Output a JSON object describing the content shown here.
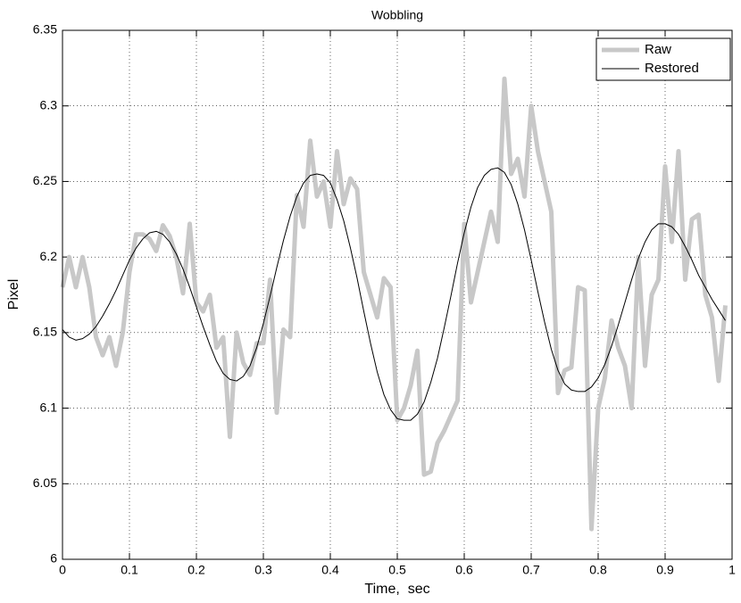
{
  "chart_data": {
    "type": "line",
    "title": "Wobbling",
    "x_label": "Time,  sec",
    "y_label": "Pixel",
    "x": [
      0,
      0.01,
      0.02,
      0.03,
      0.04,
      0.05,
      0.06,
      0.07,
      0.08,
      0.09,
      0.1,
      0.11,
      0.12,
      0.13,
      0.14,
      0.15,
      0.16,
      0.17,
      0.18,
      0.19,
      0.2,
      0.21,
      0.22,
      0.23,
      0.24,
      0.25,
      0.26,
      0.27,
      0.28,
      0.29,
      0.3,
      0.31,
      0.32,
      0.33,
      0.34,
      0.35,
      0.36,
      0.37,
      0.38,
      0.39,
      0.4,
      0.41,
      0.42,
      0.43,
      0.44,
      0.45,
      0.46,
      0.47,
      0.48,
      0.49,
      0.5,
      0.51,
      0.52,
      0.53,
      0.54,
      0.55,
      0.56,
      0.57,
      0.58,
      0.59,
      0.6,
      0.61,
      0.62,
      0.63,
      0.64,
      0.65,
      0.66,
      0.67,
      0.68,
      0.69,
      0.7,
      0.71,
      0.72,
      0.73,
      0.74,
      0.75,
      0.76,
      0.77,
      0.78,
      0.79,
      0.8,
      0.81,
      0.82,
      0.83,
      0.84,
      0.85,
      0.86,
      0.87,
      0.88,
      0.89,
      0.9,
      0.91,
      0.92,
      0.93,
      0.94,
      0.95,
      0.96,
      0.97,
      0.98,
      0.99
    ],
    "series": [
      {
        "name": "Raw",
        "color": "#c8c8c8",
        "width": 5,
        "values": [
          6.18,
          6.2,
          6.18,
          6.2,
          6.18,
          6.147,
          6.135,
          6.147,
          6.128,
          6.15,
          6.19,
          6.215,
          6.215,
          6.212,
          6.204,
          6.221,
          6.214,
          6.2,
          6.176,
          6.222,
          6.17,
          6.164,
          6.175,
          6.14,
          6.147,
          6.081,
          6.15,
          6.13,
          6.122,
          6.143,
          6.143,
          6.185,
          6.097,
          6.152,
          6.147,
          6.241,
          6.22,
          6.277,
          6.24,
          6.25,
          6.22,
          6.27,
          6.235,
          6.252,
          6.245,
          6.19,
          6.175,
          6.16,
          6.186,
          6.18,
          6.092,
          6.1,
          6.115,
          6.138,
          6.056,
          6.058,
          6.077,
          6.085,
          6.095,
          6.105,
          6.222,
          6.17,
          6.19,
          6.21,
          6.23,
          6.21,
          6.318,
          6.255,
          6.265,
          6.24,
          6.3,
          6.27,
          6.25,
          6.23,
          6.11,
          6.125,
          6.127,
          6.18,
          6.178,
          6.02,
          6.1,
          6.12,
          6.158,
          6.14,
          6.128,
          6.1,
          6.2,
          6.128,
          6.175,
          6.185,
          6.26,
          6.21,
          6.27,
          6.185,
          6.225,
          6.228,
          6.175,
          6.16,
          6.118,
          6.168
        ]
      },
      {
        "name": "Restored",
        "color": "#000000",
        "width": 1,
        "values": [
          6.152,
          6.147,
          6.145,
          6.146,
          6.149,
          6.154,
          6.161,
          6.169,
          6.178,
          6.188,
          6.198,
          6.206,
          6.212,
          6.216,
          6.217,
          6.215,
          6.21,
          6.202,
          6.192,
          6.18,
          6.167,
          6.154,
          6.142,
          6.131,
          6.123,
          6.119,
          6.118,
          6.121,
          6.128,
          6.14,
          6.156,
          6.174,
          6.193,
          6.211,
          6.227,
          6.24,
          6.249,
          6.254,
          6.255,
          6.254,
          6.249,
          6.238,
          6.224,
          6.206,
          6.186,
          6.164,
          6.143,
          6.124,
          6.109,
          6.099,
          6.093,
          6.092,
          6.092,
          6.096,
          6.104,
          6.117,
          6.133,
          6.153,
          6.174,
          6.196,
          6.216,
          6.233,
          6.246,
          6.254,
          6.258,
          6.259,
          6.256,
          6.248,
          6.235,
          6.218,
          6.198,
          6.177,
          6.157,
          6.139,
          6.125,
          6.116,
          6.112,
          6.111,
          6.111,
          6.114,
          6.12,
          6.129,
          6.141,
          6.155,
          6.17,
          6.185,
          6.199,
          6.21,
          6.218,
          6.222,
          6.222,
          6.22,
          6.215,
          6.207,
          6.198,
          6.188,
          6.18,
          6.172,
          6.165,
          6.158
        ]
      }
    ],
    "xlim": [
      0,
      1
    ],
    "xticks": [
      0,
      0.1,
      0.2,
      0.3,
      0.4,
      0.5,
      0.6,
      0.7,
      0.8,
      0.9,
      1
    ],
    "ylim": [
      6,
      6.35
    ],
    "yticks": [
      6,
      6.05,
      6.1,
      6.15,
      6.2,
      6.25,
      6.3,
      6.35
    ],
    "grid": true,
    "legend": "northeast"
  }
}
